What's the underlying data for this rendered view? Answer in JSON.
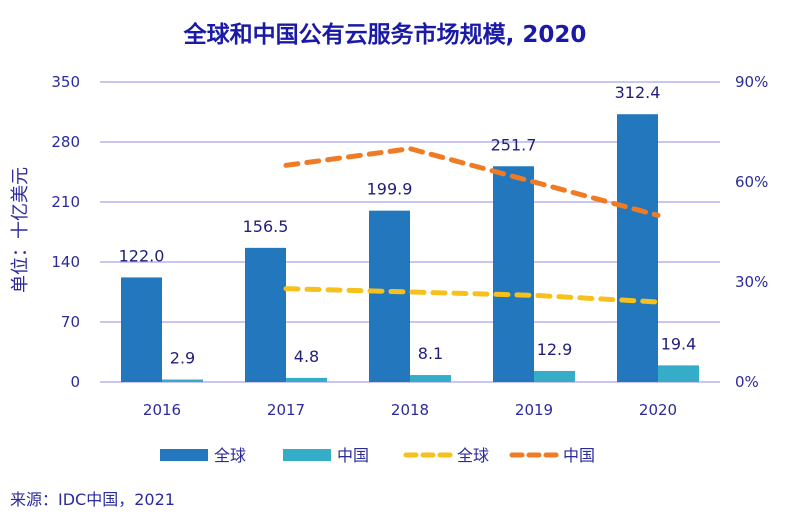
{
  "chart_data": {
    "type": "bar",
    "title": "全球和中国公有云服务市场规模, 2020",
    "categories": [
      "2016",
      "2017",
      "2018",
      "2019",
      "2020"
    ],
    "ylabel": "单位：十亿美元",
    "xlabel": "",
    "ylim": [
      0,
      350
    ],
    "yticks": [
      0,
      70,
      140,
      210,
      280,
      350
    ],
    "y2lim": [
      0,
      90
    ],
    "y2ticks": [
      0,
      30,
      60,
      90
    ],
    "y2tick_labels": [
      "0%",
      "30%",
      "60%",
      "90%"
    ],
    "grid": true,
    "legend_position": "bottom",
    "series": [
      {
        "name": "全球",
        "kind": "bar",
        "axis": "left",
        "color": "#2277bd",
        "values": [
          122.0,
          156.5,
          199.9,
          251.7,
          312.4
        ],
        "labels": [
          "122.0",
          "156.5",
          "199.9",
          "251.7",
          "312.4"
        ]
      },
      {
        "name": "中国",
        "kind": "bar",
        "axis": "left",
        "color": "#35acc8",
        "values": [
          2.9,
          4.8,
          8.1,
          12.9,
          19.4
        ],
        "labels": [
          "2.9",
          "4.8",
          "8.1",
          "12.9",
          "19.4"
        ]
      },
      {
        "name": "全球",
        "kind": "line",
        "style": "dashed",
        "axis": "right",
        "unit": "%",
        "color": "#f6c11d",
        "values": [
          null,
          28,
          27,
          26,
          24
        ]
      },
      {
        "name": "中国",
        "kind": "line",
        "style": "dashed",
        "axis": "right",
        "unit": "%",
        "color": "#f07b25",
        "values": [
          null,
          65,
          70,
          60,
          50
        ]
      }
    ],
    "source": "来源：IDC中国，2021"
  },
  "colors": {
    "title": "#1a1aa6",
    "text": "#2b2b9c",
    "grid": "#b7b4ee"
  }
}
